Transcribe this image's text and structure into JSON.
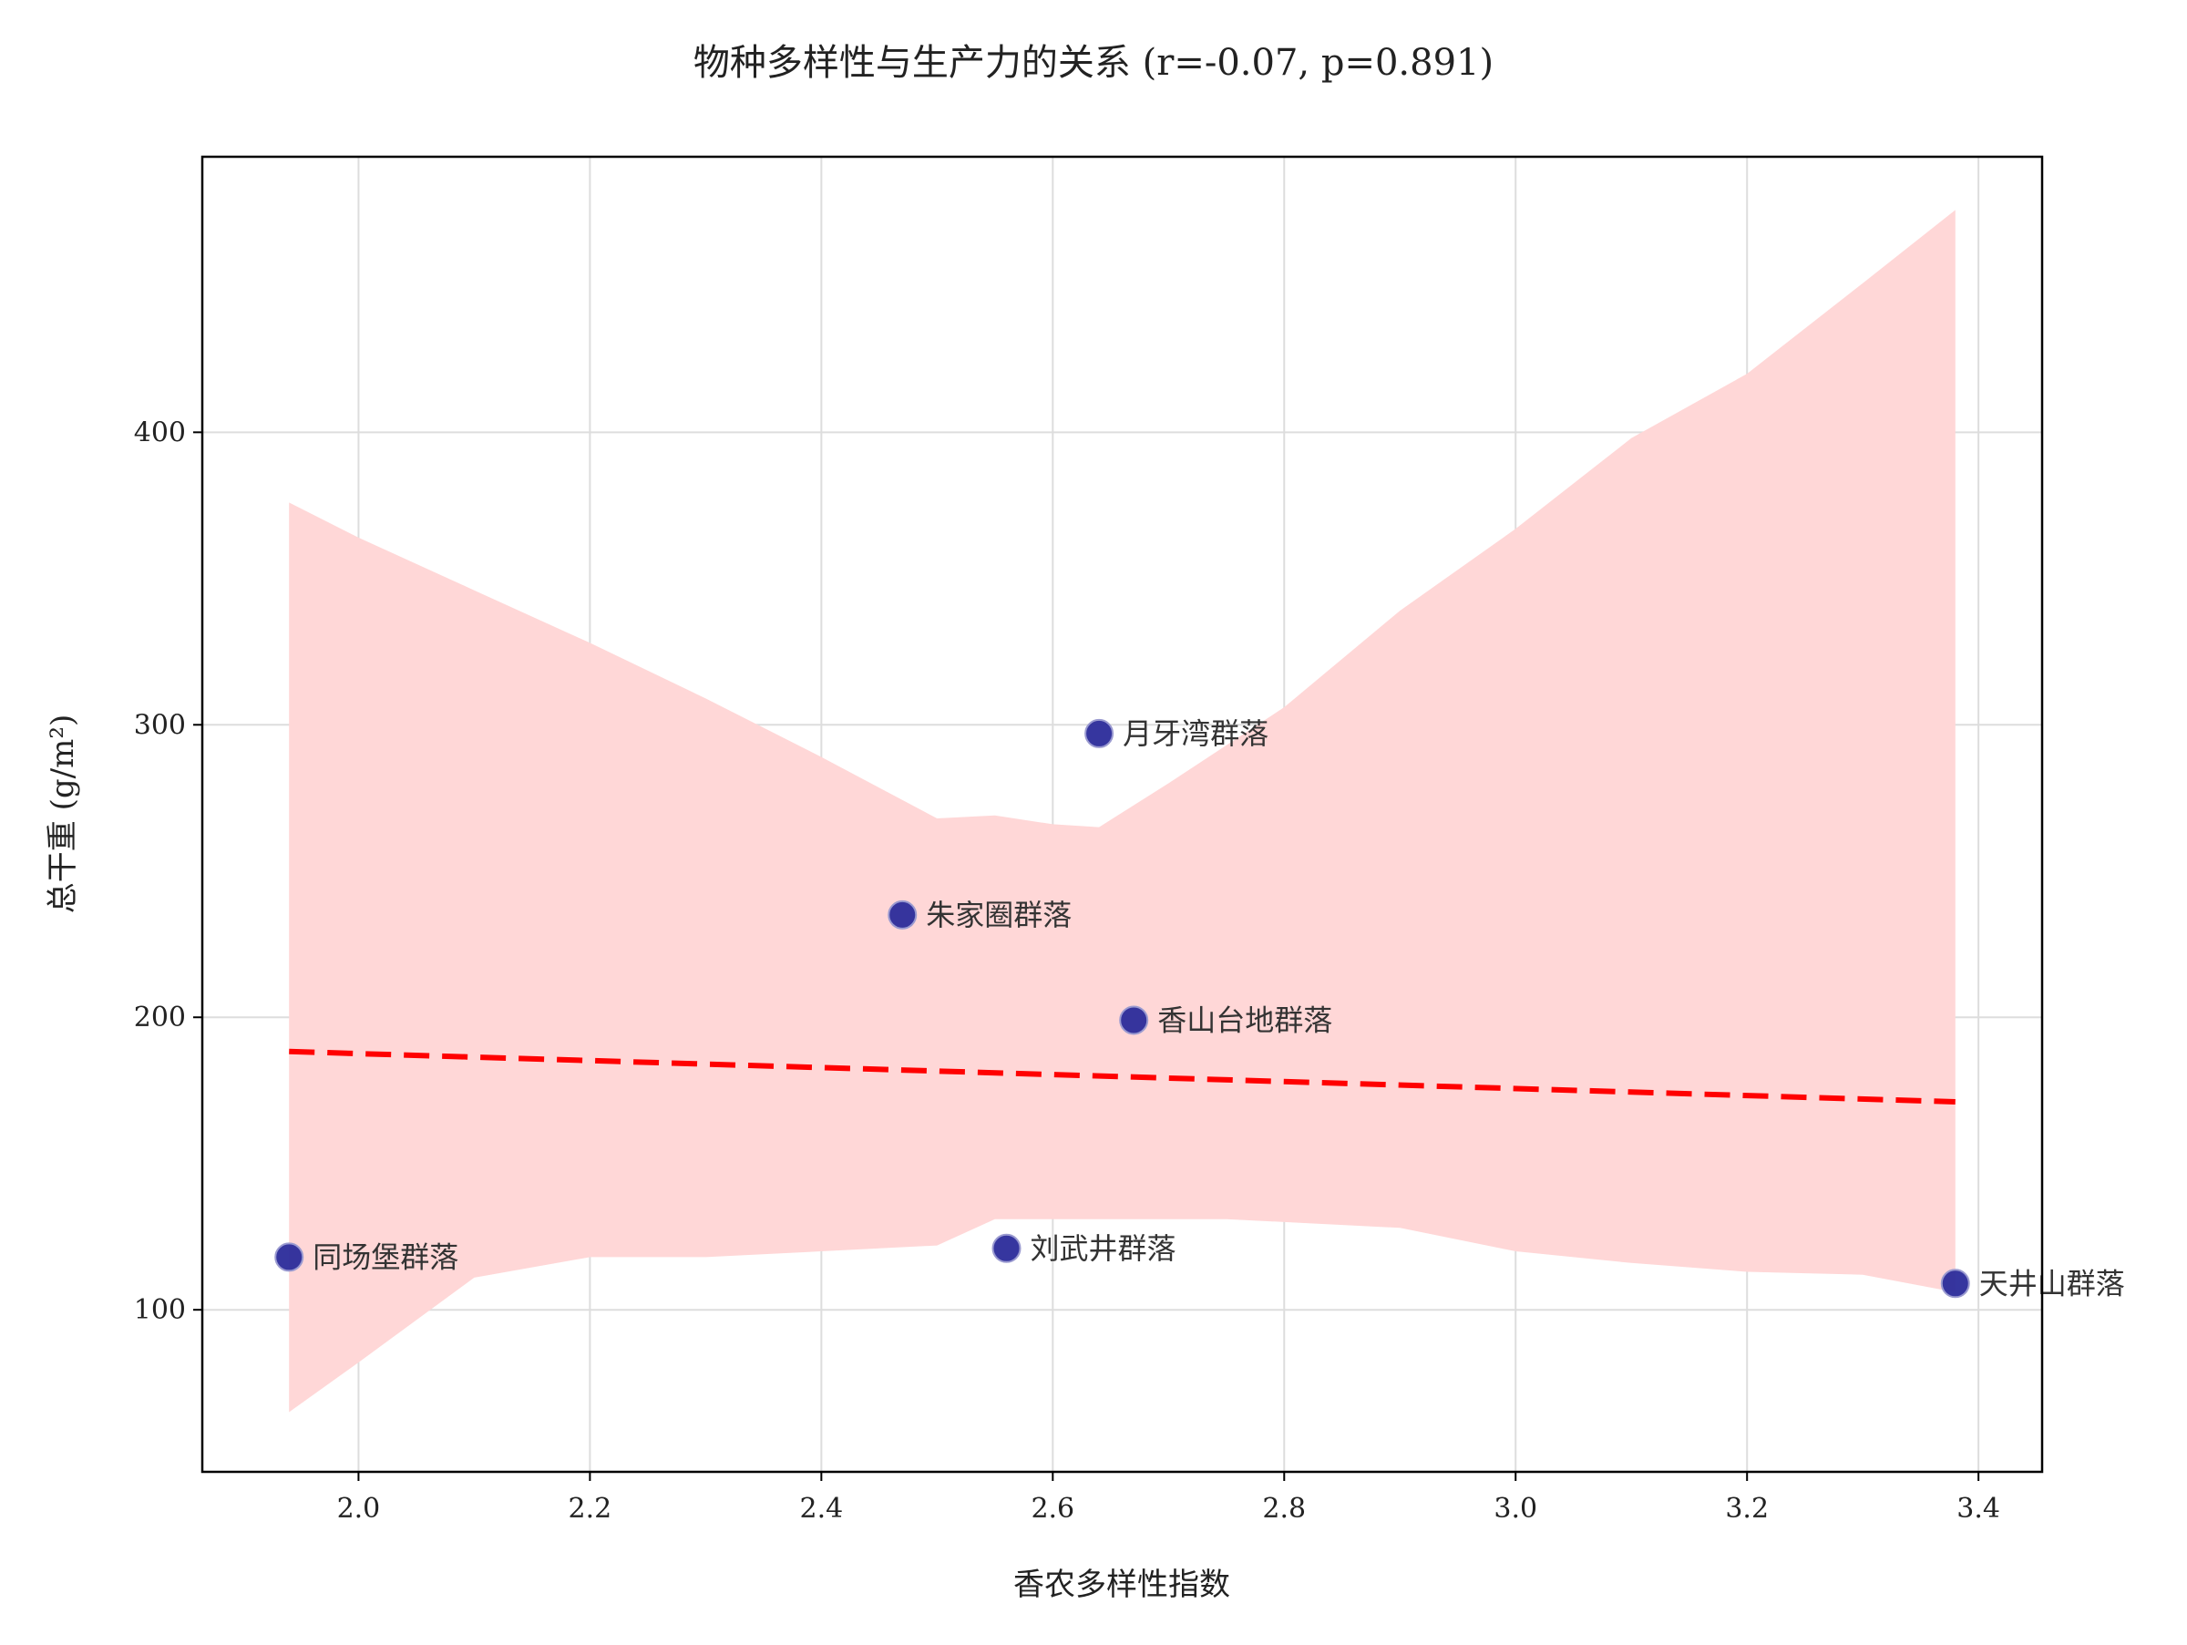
{
  "chart_data": {
    "type": "scatter",
    "title": "物种多样性与生产力的关系 (r=-0.07, p=0.891)",
    "xlabel": "香农多样性指数",
    "ylabel": "总干重 (g/m²)",
    "xlim": [
      1.865,
      3.455
    ],
    "ylim": [
      44.6,
      494.2
    ],
    "xticks": [
      2.0,
      2.2,
      2.4,
      2.6,
      2.8,
      3.0,
      3.2,
      3.4
    ],
    "xtick_labels": [
      "2.0",
      "2.2",
      "2.4",
      "2.6",
      "2.8",
      "3.0",
      "3.2",
      "3.4"
    ],
    "yticks": [
      100,
      200,
      300,
      400
    ],
    "ytick_labels": [
      "100",
      "200",
      "300",
      "400"
    ],
    "grid": true,
    "points": [
      {
        "label": "同场堡群落",
        "x": 1.94,
        "y": 118
      },
      {
        "label": "朱家圈群落",
        "x": 2.47,
        "y": 235
      },
      {
        "label": "刘武井群落",
        "x": 2.56,
        "y": 121
      },
      {
        "label": "月牙湾群落",
        "x": 2.64,
        "y": 297
      },
      {
        "label": "香山台地群落",
        "x": 2.67,
        "y": 199
      },
      {
        "label": "天井山群落",
        "x": 3.38,
        "y": 109
      }
    ],
    "regression_line": {
      "x": [
        1.94,
        3.38
      ],
      "y": [
        188.3,
        171.1
      ]
    },
    "confidence_band": {
      "x": [
        1.94,
        2.0,
        2.1,
        2.2,
        2.3,
        2.4,
        2.5,
        2.55,
        2.6,
        2.64,
        2.7,
        2.75,
        2.8,
        2.9,
        3.0,
        3.1,
        3.2,
        3.3,
        3.38
      ],
      "upper": [
        376,
        364,
        346,
        328,
        309,
        289,
        268,
        269,
        266,
        265,
        280,
        293,
        306,
        339,
        367,
        398,
        420,
        451,
        476
      ],
      "lower": [
        65,
        82,
        111,
        118,
        118,
        120,
        122,
        131,
        131,
        131,
        131,
        131,
        130,
        128,
        120,
        116,
        113,
        112,
        106
      ]
    },
    "colors": {
      "point_fill": "#2b2b9a",
      "point_edge": "#9a9ad0",
      "regression": "#ff0000",
      "band": "#ffd7d7",
      "grid": "#dddddd"
    }
  }
}
